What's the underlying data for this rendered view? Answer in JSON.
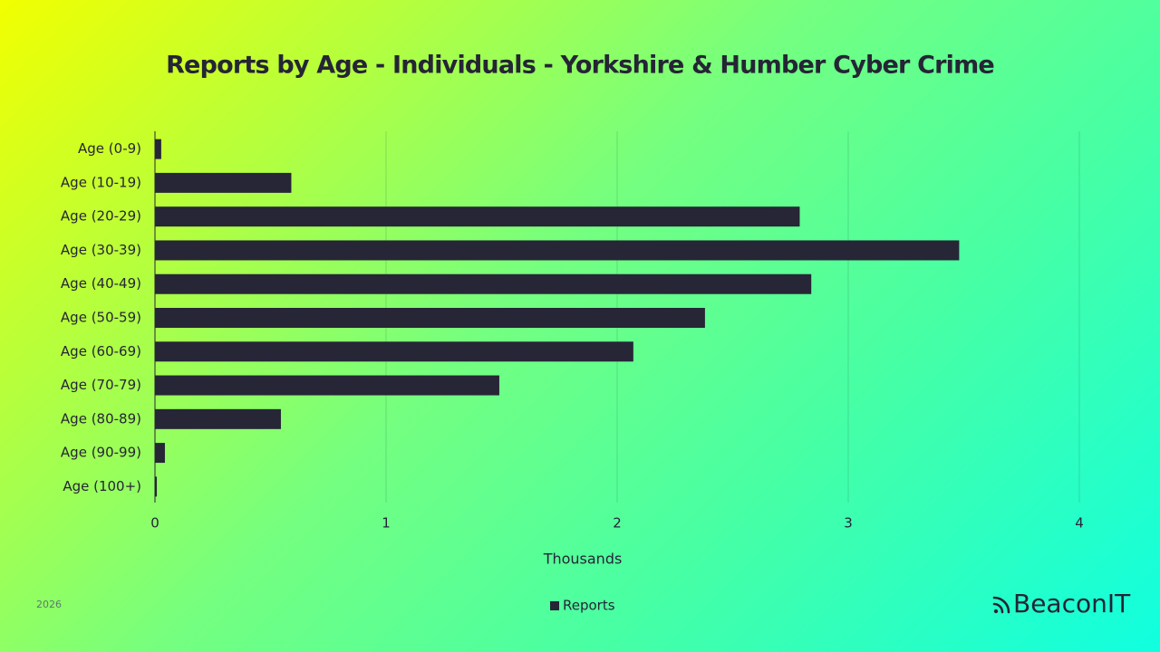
{
  "chart_data": {
    "type": "hbar",
    "title": "Reports by Age - Individuals - Yorkshire & Humber Cyber Crime",
    "categories": [
      "Age (0-9)",
      "Age (10-19)",
      "Age (20-29)",
      "Age (30-39)",
      "Age (40-49)",
      "Age (50-59)",
      "Age (60-69)",
      "Age (70-79)",
      "Age (80-89)",
      "Age (90-99)",
      "Age (100+)"
    ],
    "series": [
      {
        "name": "Reports",
        "color": "#262636",
        "values": [
          0.027,
          0.59,
          2.79,
          3.48,
          2.84,
          2.38,
          2.07,
          1.49,
          0.545,
          0.043,
          0.008
        ]
      }
    ],
    "xlabel": "Thousands",
    "xlim": [
      0,
      4
    ],
    "xticks": [
      0,
      1,
      2,
      3,
      4
    ],
    "grid": true,
    "legend": "bottom"
  },
  "footer": {
    "year": "2026",
    "brand": "BeaconIT"
  }
}
